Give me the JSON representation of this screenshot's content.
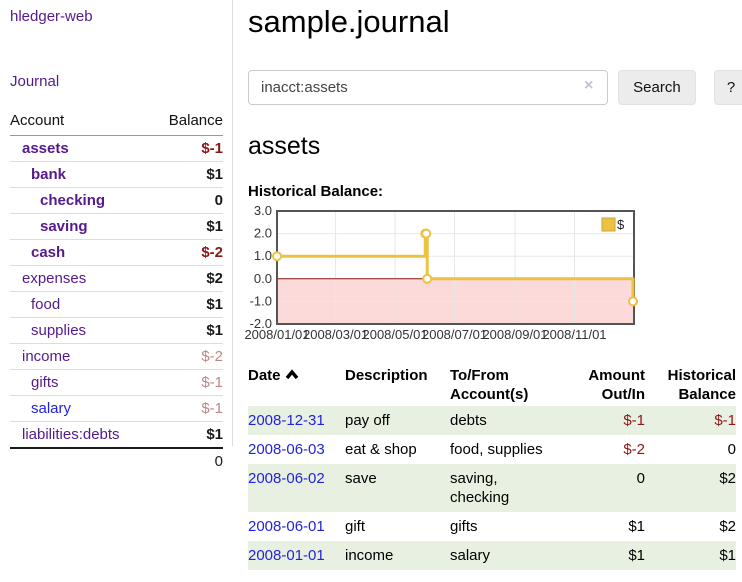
{
  "app": {
    "brand": "hledger-web",
    "nav_journal": "Journal"
  },
  "sidebar": {
    "header": {
      "account": "Account",
      "balance": "Balance"
    },
    "accounts": [
      {
        "name": "assets",
        "balance": "$-1",
        "level": 1,
        "emph": true,
        "name_style": "purple",
        "bal_style": "negstrong"
      },
      {
        "name": "bank",
        "balance": "$1",
        "level": 2,
        "emph": true,
        "name_style": "purple",
        "bal_style": "pos"
      },
      {
        "name": "checking",
        "balance": "0",
        "level": 3,
        "emph": true,
        "name_style": "purple",
        "bal_style": "pos"
      },
      {
        "name": "saving",
        "balance": "$1",
        "level": 3,
        "emph": true,
        "name_style": "purple",
        "bal_style": "pos"
      },
      {
        "name": "cash",
        "balance": "$-2",
        "level": 2,
        "emph": true,
        "name_style": "purple",
        "bal_style": "negstrong"
      },
      {
        "name": "expenses",
        "balance": "$2",
        "level": 1,
        "emph": false,
        "name_style": "purple",
        "bal_style": "pos"
      },
      {
        "name": "food",
        "balance": "$1",
        "level": 2,
        "emph": false,
        "name_style": "purple",
        "bal_style": "pos"
      },
      {
        "name": "supplies",
        "balance": "$1",
        "level": 2,
        "emph": false,
        "name_style": "purple",
        "bal_style": "pos"
      },
      {
        "name": "income",
        "balance": "$-2",
        "level": 1,
        "emph": false,
        "name_style": "purple",
        "bal_style": "negmuted"
      },
      {
        "name": "gifts",
        "balance": "$-1",
        "level": 2,
        "emph": false,
        "name_style": "purple",
        "bal_style": "negmuted"
      },
      {
        "name": "salary",
        "balance": "$-1",
        "level": 2,
        "emph": false,
        "name_style": "blue",
        "bal_style": "negmuted"
      },
      {
        "name": "liabilities:debts",
        "balance": "$1",
        "level": 1,
        "emph": false,
        "name_style": "purple",
        "bal_style": "pos"
      }
    ],
    "total": "0"
  },
  "header": {
    "title": "sample.journal"
  },
  "search": {
    "value": "inacct:assets",
    "clear_icon": "×",
    "button": "Search",
    "help_button": "?"
  },
  "account_page": {
    "title": "assets",
    "chart_label": "Historical Balance:"
  },
  "chart_data": {
    "type": "line",
    "step": true,
    "title": "Historical Balance:",
    "series": [
      {
        "name": "$",
        "x_dates": [
          "2008-01-01",
          "2008-06-01",
          "2008-06-02",
          "2008-06-03",
          "2008-12-31"
        ],
        "x_days": [
          0,
          152,
          153,
          154,
          365
        ],
        "values": [
          1,
          2,
          2,
          0,
          -1
        ]
      }
    ],
    "xlim": [
      0,
      366
    ],
    "ylim": [
      -2,
      3
    ],
    "yticks": [
      {
        "v": 3,
        "label": "3.0"
      },
      {
        "v": 2,
        "label": "2.0"
      },
      {
        "v": 1,
        "label": "1.0"
      },
      {
        "v": 0,
        "label": "0.0"
      },
      {
        "v": -1,
        "label": "-1.0"
      },
      {
        "v": -2,
        "label": "-2.0"
      }
    ],
    "xticks": [
      {
        "v": 0,
        "label": "2008/01/01"
      },
      {
        "v": 60,
        "label": "2008/03/01"
      },
      {
        "v": 121,
        "label": "2008/05/01"
      },
      {
        "v": 182,
        "label": "2008/07/01"
      },
      {
        "v": 244,
        "label": "2008/09/01"
      },
      {
        "v": 305,
        "label": "2008/11/01"
      }
    ],
    "legend": [
      {
        "label": "$",
        "color": "#edc240"
      }
    ],
    "legend_position": "top-right",
    "grid": true,
    "line_color": "#edc240",
    "negative_region_fill": "#fcdada",
    "zero_line_color": "#871111"
  },
  "register": {
    "columns": {
      "date": "Date",
      "description": "Description",
      "accounts": "To/From Account(s)",
      "amount": "Amount Out/In",
      "balance": "Historical Balance"
    },
    "rows": [
      {
        "date": "2008-12-31",
        "description": "pay off",
        "accounts": "debts",
        "amount": "$-1",
        "balance": "$-1",
        "amount_neg": true,
        "balance_neg": true,
        "green": true
      },
      {
        "date": "2008-06-03",
        "description": "eat & shop",
        "accounts": "food, supplies",
        "amount": "$-2",
        "balance": "0",
        "amount_neg": true,
        "balance_neg": false,
        "green": false
      },
      {
        "date": "2008-06-02",
        "description": "save",
        "accounts": "saving, checking",
        "amount": "0",
        "balance": "$2",
        "amount_neg": false,
        "balance_neg": false,
        "green": true
      },
      {
        "date": "2008-06-01",
        "description": "gift",
        "accounts": "gifts",
        "amount": "$1",
        "balance": "$2",
        "amount_neg": false,
        "balance_neg": false,
        "green": false
      },
      {
        "date": "2008-01-01",
        "description": "income",
        "accounts": "salary",
        "amount": "$1",
        "balance": "$1",
        "amount_neg": false,
        "balance_neg": false,
        "green": true
      }
    ]
  },
  "colors": {
    "link_purple": "#551a8b",
    "link_blue": "#2222dd",
    "date_link_blue": "#2323d9",
    "neg_red": "#8b1717",
    "neg_muted": "#c08585",
    "row_green": "#e8f1e1",
    "chart_gold": "#edc240",
    "chart_neg_fill": "#fcdada",
    "zero_line": "#871111"
  }
}
